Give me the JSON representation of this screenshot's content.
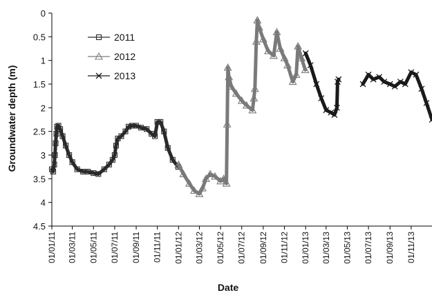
{
  "chart_data": {
    "type": "scatter",
    "title": "",
    "xlabel": "Date",
    "ylabel": "Groundwater depth (m)",
    "y_inverted": true,
    "ylim": [
      0,
      4.5
    ],
    "yticks": [
      "0",
      "0.5",
      "1",
      "1.5",
      "2",
      "2.5",
      "3",
      "3.5",
      "4",
      "4.5"
    ],
    "xlim": [
      "2011-01-01",
      "2013-12-31"
    ],
    "xticks": [
      {
        "date": "2011-01-01",
        "label": "01/01/11"
      },
      {
        "date": "2011-03-01",
        "label": "01/03/11"
      },
      {
        "date": "2011-05-01",
        "label": "01/05/11"
      },
      {
        "date": "2011-07-01",
        "label": "01/07/11"
      },
      {
        "date": "2011-09-01",
        "label": "01/09/11"
      },
      {
        "date": "2011-11-01",
        "label": "01/11/11"
      },
      {
        "date": "2012-01-01",
        "label": "01/01/12"
      },
      {
        "date": "2012-03-01",
        "label": "01/03/12"
      },
      {
        "date": "2012-05-01",
        "label": "01/05/12"
      },
      {
        "date": "2012-07-01",
        "label": "01/07/12"
      },
      {
        "date": "2012-09-01",
        "label": "01/09/12"
      },
      {
        "date": "2012-11-01",
        "label": "01/11/12"
      },
      {
        "date": "2013-01-01",
        "label": "01/01/13"
      },
      {
        "date": "2013-03-01",
        "label": "01/03/13"
      },
      {
        "date": "2013-05-01",
        "label": "01/05/13"
      },
      {
        "date": "2013-07-01",
        "label": "01/07/13"
      },
      {
        "date": "2013-09-01",
        "label": "01/09/13"
      },
      {
        "date": "2013-11-01",
        "label": "01/11/13"
      }
    ],
    "grid": false,
    "legend": "top-left",
    "series": [
      {
        "name": "2011",
        "marker": "square",
        "color": "#2a2a2a",
        "points": [
          [
            "2011-01-01",
            3.3
          ],
          [
            "2011-01-05",
            3.35
          ],
          [
            "2011-01-08",
            3.2
          ],
          [
            "2011-01-10",
            3.0
          ],
          [
            "2011-01-12",
            2.75
          ],
          [
            "2011-01-14",
            2.55
          ],
          [
            "2011-01-16",
            2.4
          ],
          [
            "2011-01-20",
            2.38
          ],
          [
            "2011-01-25",
            2.45
          ],
          [
            "2011-02-01",
            2.6
          ],
          [
            "2011-02-10",
            2.8
          ],
          [
            "2011-02-20",
            3.0
          ],
          [
            "2011-03-01",
            3.15
          ],
          [
            "2011-03-15",
            3.3
          ],
          [
            "2011-04-01",
            3.35
          ],
          [
            "2011-04-15",
            3.35
          ],
          [
            "2011-05-01",
            3.38
          ],
          [
            "2011-05-15",
            3.4
          ],
          [
            "2011-06-01",
            3.3
          ],
          [
            "2011-06-15",
            3.2
          ],
          [
            "2011-06-25",
            3.1
          ],
          [
            "2011-07-01",
            3.0
          ],
          [
            "2011-07-05",
            2.8
          ],
          [
            "2011-07-10",
            2.65
          ],
          [
            "2011-07-20",
            2.6
          ],
          [
            "2011-08-01",
            2.5
          ],
          [
            "2011-08-10",
            2.4
          ],
          [
            "2011-08-20",
            2.38
          ],
          [
            "2011-09-01",
            2.38
          ],
          [
            "2011-09-15",
            2.42
          ],
          [
            "2011-10-01",
            2.45
          ],
          [
            "2011-10-15",
            2.55
          ],
          [
            "2011-10-25",
            2.6
          ],
          [
            "2011-11-01",
            2.3
          ],
          [
            "2011-11-10",
            2.3
          ],
          [
            "2011-11-20",
            2.5
          ],
          [
            "2011-12-01",
            2.85
          ],
          [
            "2011-12-15",
            3.1
          ],
          [
            "2011-12-31",
            3.25
          ]
        ]
      },
      {
        "name": "2012",
        "marker": "triangle",
        "color": "#7a7a7a",
        "points": [
          [
            "2012-01-01",
            3.2
          ],
          [
            "2012-01-15",
            3.4
          ],
          [
            "2012-02-01",
            3.6
          ],
          [
            "2012-02-15",
            3.75
          ],
          [
            "2012-03-01",
            3.82
          ],
          [
            "2012-03-10",
            3.7
          ],
          [
            "2012-03-20",
            3.5
          ],
          [
            "2012-04-01",
            3.4
          ],
          [
            "2012-04-15",
            3.45
          ],
          [
            "2012-05-01",
            3.55
          ],
          [
            "2012-05-10",
            3.5
          ],
          [
            "2012-05-18",
            3.6
          ],
          [
            "2012-05-20",
            2.35
          ],
          [
            "2012-05-22",
            1.15
          ],
          [
            "2012-05-25",
            1.35
          ],
          [
            "2012-06-01",
            1.55
          ],
          [
            "2012-06-15",
            1.7
          ],
          [
            "2012-07-01",
            1.85
          ],
          [
            "2012-07-15",
            1.95
          ],
          [
            "2012-08-01",
            2.05
          ],
          [
            "2012-08-05",
            1.8
          ],
          [
            "2012-08-08",
            1.6
          ],
          [
            "2012-08-12",
            0.6
          ],
          [
            "2012-08-15",
            0.15
          ],
          [
            "2012-08-20",
            0.3
          ],
          [
            "2012-09-01",
            0.55
          ],
          [
            "2012-09-15",
            0.8
          ],
          [
            "2012-10-01",
            0.9
          ],
          [
            "2012-10-10",
            0.4
          ],
          [
            "2012-10-20",
            0.75
          ],
          [
            "2012-11-01",
            0.95
          ],
          [
            "2012-11-10",
            1.1
          ],
          [
            "2012-11-25",
            1.45
          ],
          [
            "2012-12-05",
            1.3
          ],
          [
            "2012-12-10",
            0.7
          ],
          [
            "2012-12-20",
            0.95
          ],
          [
            "2012-12-31",
            1.2
          ]
        ]
      },
      {
        "name": "2013",
        "marker": "x",
        "color": "#1a1a1a",
        "points": [
          [
            "2013-01-01",
            0.85
          ],
          [
            "2013-01-15",
            1.1
          ],
          [
            "2013-02-01",
            1.5
          ],
          [
            "2013-02-15",
            1.8
          ],
          [
            "2013-03-01",
            2.05
          ],
          [
            "2013-03-15",
            2.1
          ],
          [
            "2013-03-25",
            2.15
          ],
          [
            "2013-04-01",
            2.0
          ],
          [
            "2013-04-03",
            1.45
          ],
          [
            "2013-04-06",
            1.4
          ],
          [
            "2013-06-15",
            1.5
          ],
          [
            "2013-07-01",
            1.3
          ],
          [
            "2013-07-15",
            1.4
          ],
          [
            "2013-08-01",
            1.35
          ],
          [
            "2013-08-15",
            1.45
          ],
          [
            "2013-09-01",
            1.5
          ],
          [
            "2013-09-15",
            1.55
          ],
          [
            "2013-10-01",
            1.45
          ],
          [
            "2013-10-15",
            1.5
          ],
          [
            "2013-11-01",
            1.25
          ],
          [
            "2013-11-15",
            1.3
          ],
          [
            "2013-12-01",
            1.6
          ],
          [
            "2013-12-15",
            1.9
          ],
          [
            "2013-12-31",
            2.25
          ]
        ]
      }
    ]
  }
}
